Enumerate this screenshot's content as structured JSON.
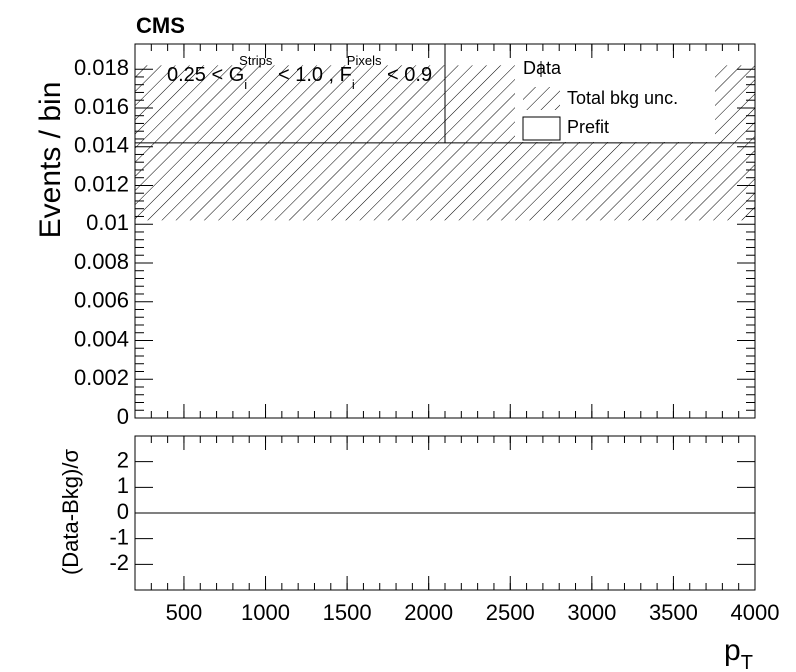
{
  "chart_data": {
    "type": "histogram",
    "title": "CMS",
    "ylabel": "Events / bin",
    "xlabel": [
      "p",
      "T"
    ],
    "annotation": [
      "0.25 < G",
      "i",
      "Strips",
      " < 1.0 , F",
      "i",
      "Pixels",
      " < 0.9"
    ],
    "bins": [
      200,
      2100,
      4000
    ],
    "series": [
      {
        "name": "Prefit",
        "color": "#000000",
        "values": [
          0.0142,
          0.0142
        ],
        "errors": [
          0.004,
          0.004
        ]
      }
    ],
    "legend": [
      "Data",
      "Total bkg unc.",
      "Prefit"
    ],
    "legend_position": "upper right",
    "xlim": [
      200,
      4000
    ],
    "xticks": [
      500,
      1000,
      1500,
      2000,
      2500,
      3000,
      3500,
      4000
    ],
    "ylim": [
      0,
      0.0193
    ],
    "yticks": [
      0,
      0.002,
      0.004,
      0.006,
      0.008,
      0.01,
      0.012,
      0.014,
      0.016,
      0.018
    ],
    "ratio": {
      "ylabel": "(Data-Bkg)/σ",
      "ylim": [
        -3,
        3
      ],
      "yticks": [
        -2,
        -1,
        0,
        1,
        2
      ]
    }
  }
}
